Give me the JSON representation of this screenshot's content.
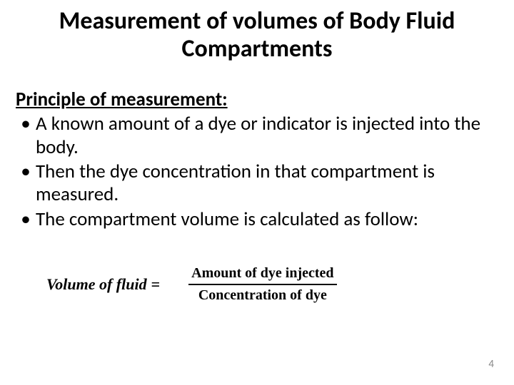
{
  "title": {
    "text": "Measurement of volumes of Body Fluid Compartments",
    "fontsize": 34
  },
  "subheading": {
    "text": "Principle of measurement:",
    "fontsize": 27
  },
  "bullets": [
    "A known amount of a dye or indicator is injected into the body.",
    "Then the dye concentration in that compartment is measured.",
    "The compartment volume is calculated as follow:"
  ],
  "body_fontsize": 27,
  "formula": {
    "lhs": "Volume of fluid",
    "equals": "=",
    "numerator": "Amount of dye injected",
    "denominator": "Concentration of dye",
    "lhs_fontsize": 22,
    "fraction_fontsize": 20
  },
  "page_number": "4",
  "page_number_fontsize": 15,
  "colors": {
    "text": "#000000",
    "background": "#ffffff",
    "page_number": "#888888"
  }
}
